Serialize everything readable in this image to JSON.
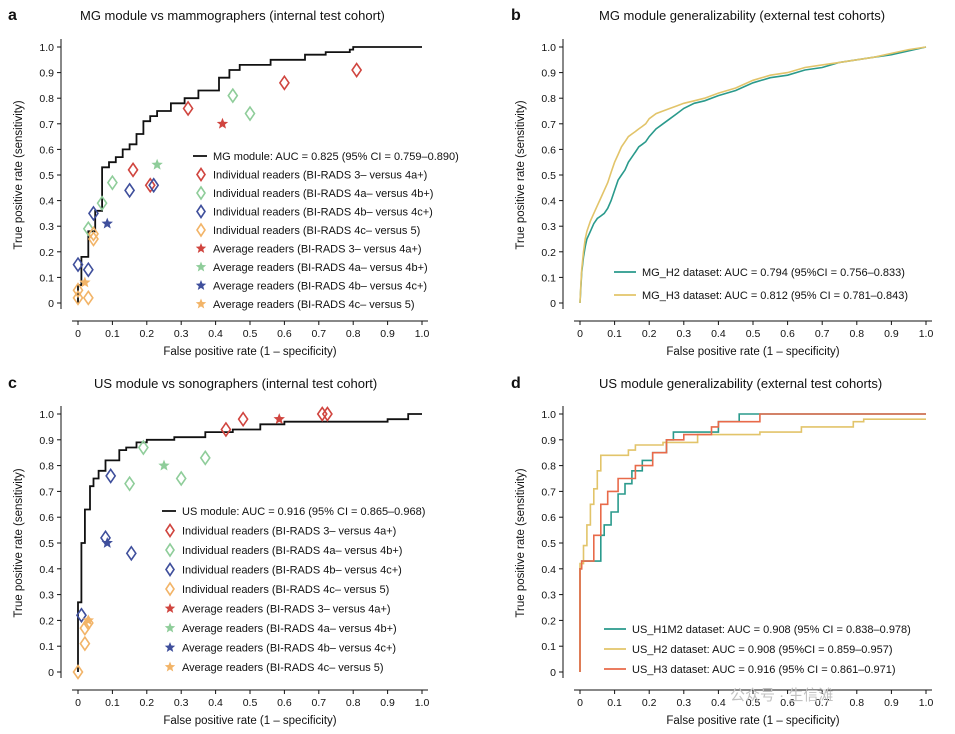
{
  "watermark": {
    "text": "公众号 · 生信滩"
  },
  "colors": {
    "mg": "#111111",
    "red": "#d0453f",
    "green": "#8fcd9a",
    "blue": "#3f4f9c",
    "orange": "#f2b468",
    "teal": "#2a9a8c",
    "gold": "#e2c46a",
    "salmon": "#e86a4a"
  },
  "chart_data": [
    {
      "panel": "a",
      "type": "line",
      "title": "MG module vs mammographers (internal test cohort)",
      "xlabel": "False positive rate (1 – specificity)",
      "ylabel": "True positive rate (sensitivity)",
      "xlim": [
        0,
        1
      ],
      "ylim": [
        0,
        1
      ],
      "xticks": [
        "0",
        "0.1",
        "0.2",
        "0.3",
        "0.4",
        "0.5",
        "0.6",
        "0.7",
        "0.8",
        "0.9",
        "1.0"
      ],
      "yticks": [
        "0",
        "0.1",
        "0.2",
        "0.3",
        "0.4",
        "0.5",
        "0.6",
        "0.7",
        "0.8",
        "0.9",
        "1.0"
      ],
      "legend_position": "center-right",
      "series": [
        {
          "name": "MG module: AUC = 0.825 (95% CI = 0.759–0.890)",
          "kind": "step",
          "color": "#111111",
          "x": [
            0,
            0,
            0.01,
            0.01,
            0.03,
            0.03,
            0.05,
            0.05,
            0.07,
            0.07,
            0.09,
            0.09,
            0.11,
            0.11,
            0.13,
            0.13,
            0.15,
            0.15,
            0.17,
            0.17,
            0.19,
            0.19,
            0.21,
            0.21,
            0.23,
            0.23,
            0.27,
            0.27,
            0.31,
            0.31,
            0.35,
            0.35,
            0.41,
            0.41,
            0.44,
            0.44,
            0.47,
            0.47,
            0.56,
            0.56,
            0.66,
            0.66,
            0.72,
            0.72,
            0.79,
            0.79,
            0.8,
            0.8,
            1.0
          ],
          "y": [
            0,
            0.07,
            0.07,
            0.18,
            0.18,
            0.28,
            0.28,
            0.36,
            0.36,
            0.53,
            0.53,
            0.55,
            0.55,
            0.57,
            0.57,
            0.6,
            0.6,
            0.62,
            0.62,
            0.66,
            0.66,
            0.71,
            0.71,
            0.73,
            0.73,
            0.75,
            0.75,
            0.78,
            0.78,
            0.8,
            0.8,
            0.83,
            0.83,
            0.88,
            0.88,
            0.91,
            0.91,
            0.93,
            0.93,
            0.95,
            0.95,
            0.97,
            0.97,
            0.98,
            0.98,
            0.99,
            0.99,
            1.0,
            1.0
          ]
        },
        {
          "name": "Individual readers (BI-RADS 3– versus 4a+)",
          "kind": "diamond",
          "color": "#d0453f",
          "points": [
            [
              0.16,
              0.52
            ],
            [
              0.21,
              0.46
            ],
            [
              0.32,
              0.76
            ],
            [
              0.6,
              0.86
            ],
            [
              0.81,
              0.91
            ]
          ]
        },
        {
          "name": "Individual readers (BI-RADS 4a– versus 4b+)",
          "kind": "diamond",
          "color": "#8fcd9a",
          "points": [
            [
              0.03,
              0.29
            ],
            [
              0.07,
              0.39
            ],
            [
              0.1,
              0.47
            ],
            [
              0.45,
              0.81
            ],
            [
              0.5,
              0.74
            ]
          ]
        },
        {
          "name": "Individual readers (BI-RADS 4b– versus 4c+)",
          "kind": "diamond",
          "color": "#3f4f9c",
          "points": [
            [
              0.0,
              0.15
            ],
            [
              0.03,
              0.13
            ],
            [
              0.045,
              0.35
            ],
            [
              0.15,
              0.44
            ],
            [
              0.22,
              0.46
            ]
          ]
        },
        {
          "name": "Individual readers (BI-RADS 4c– versus 5)",
          "kind": "diamond",
          "color": "#f2b468",
          "points": [
            [
              0.0,
              0.02
            ],
            [
              0.0,
              0.05
            ],
            [
              0.03,
              0.02
            ],
            [
              0.045,
              0.25
            ],
            [
              0.045,
              0.27
            ]
          ]
        },
        {
          "name": "Average readers (BI-RADS 3– versus 4a+)",
          "kind": "star",
          "color": "#d0453f",
          "points": [
            [
              0.42,
              0.7
            ]
          ]
        },
        {
          "name": "Average readers (BI-RADS 4a– versus 4b+)",
          "kind": "star",
          "color": "#8fcd9a",
          "points": [
            [
              0.23,
              0.54
            ]
          ]
        },
        {
          "name": "Average readers (BI-RADS 4b– versus 4c+)",
          "kind": "star",
          "color": "#3f4f9c",
          "points": [
            [
              0.085,
              0.31
            ]
          ]
        },
        {
          "name": "Average readers (BI-RADS 4c– versus 5)",
          "kind": "star",
          "color": "#f2b468",
          "points": [
            [
              0.02,
              0.08
            ]
          ]
        }
      ]
    },
    {
      "panel": "b",
      "type": "line",
      "title": "MG module generalizability (external test cohorts)",
      "xlabel": "False positive rate (1 – specificity)",
      "ylabel": "True positive rate (sensitivity)",
      "xlim": [
        0,
        1
      ],
      "ylim": [
        0,
        1
      ],
      "xticks": [
        "0",
        "0.1",
        "0.2",
        "0.3",
        "0.4",
        "0.5",
        "0.6",
        "0.7",
        "0.8",
        "0.9",
        "1.0"
      ],
      "yticks": [
        "0",
        "0.1",
        "0.2",
        "0.3",
        "0.4",
        "0.5",
        "0.6",
        "0.7",
        "0.8",
        "0.9",
        "1.0"
      ],
      "legend_position": "bottom-right",
      "series": [
        {
          "name": "MG_H2 dataset: AUC = 0.794 (95%CI = 0.756–0.833)",
          "kind": "line",
          "color": "#2a9a8c",
          "x": [
            0,
            0.002,
            0.005,
            0.01,
            0.015,
            0.02,
            0.03,
            0.04,
            0.05,
            0.06,
            0.07,
            0.08,
            0.09,
            0.1,
            0.11,
            0.12,
            0.13,
            0.14,
            0.15,
            0.16,
            0.17,
            0.18,
            0.19,
            0.2,
            0.22,
            0.24,
            0.26,
            0.28,
            0.3,
            0.33,
            0.36,
            0.4,
            0.45,
            0.5,
            0.55,
            0.6,
            0.65,
            0.7,
            0.75,
            0.8,
            0.85,
            0.9,
            0.95,
            1.0
          ],
          "y": [
            0,
            0.05,
            0.12,
            0.18,
            0.22,
            0.25,
            0.28,
            0.31,
            0.33,
            0.34,
            0.35,
            0.37,
            0.4,
            0.44,
            0.48,
            0.5,
            0.52,
            0.55,
            0.57,
            0.59,
            0.61,
            0.62,
            0.63,
            0.65,
            0.68,
            0.7,
            0.72,
            0.74,
            0.76,
            0.78,
            0.79,
            0.81,
            0.83,
            0.86,
            0.88,
            0.89,
            0.91,
            0.92,
            0.94,
            0.95,
            0.96,
            0.97,
            0.985,
            1.0
          ]
        },
        {
          "name": "MG_H3 dataset: AUC = 0.812 (95% CI = 0.781–0.843)",
          "kind": "line",
          "color": "#e2c46a",
          "x": [
            0,
            0.002,
            0.005,
            0.01,
            0.015,
            0.02,
            0.03,
            0.04,
            0.05,
            0.06,
            0.07,
            0.08,
            0.09,
            0.1,
            0.11,
            0.12,
            0.13,
            0.14,
            0.15,
            0.16,
            0.17,
            0.18,
            0.19,
            0.2,
            0.22,
            0.24,
            0.26,
            0.28,
            0.3,
            0.33,
            0.36,
            0.4,
            0.45,
            0.5,
            0.55,
            0.6,
            0.65,
            0.7,
            0.75,
            0.8,
            0.85,
            0.9,
            0.95,
            1.0
          ],
          "y": [
            0,
            0.06,
            0.13,
            0.2,
            0.25,
            0.28,
            0.32,
            0.35,
            0.38,
            0.41,
            0.44,
            0.47,
            0.51,
            0.55,
            0.58,
            0.61,
            0.63,
            0.65,
            0.66,
            0.67,
            0.68,
            0.69,
            0.7,
            0.72,
            0.74,
            0.75,
            0.76,
            0.77,
            0.78,
            0.79,
            0.8,
            0.82,
            0.84,
            0.87,
            0.89,
            0.9,
            0.92,
            0.93,
            0.94,
            0.95,
            0.96,
            0.975,
            0.99,
            1.0
          ]
        }
      ]
    },
    {
      "panel": "c",
      "type": "line",
      "title": "US module vs sonographers (internal test cohort)",
      "xlabel": "False positive rate (1 – specificity)",
      "ylabel": "True positive rate (sensitivity)",
      "xlim": [
        0,
        1
      ],
      "ylim": [
        0,
        1
      ],
      "xticks": [
        "0",
        "0.1",
        "0.2",
        "0.3",
        "0.4",
        "0.5",
        "0.6",
        "0.7",
        "0.8",
        "0.9",
        "1.0"
      ],
      "yticks": [
        "0",
        "0.1",
        "0.2",
        "0.3",
        "0.4",
        "0.5",
        "0.6",
        "0.7",
        "0.8",
        "0.9",
        "1.0"
      ],
      "legend_position": "center-right",
      "series": [
        {
          "name": "US module: AUC = 0.916 (95% CI = 0.865–0.968)",
          "kind": "step",
          "color": "#111111",
          "x": [
            0,
            0,
            0.01,
            0.01,
            0.02,
            0.02,
            0.035,
            0.035,
            0.045,
            0.045,
            0.06,
            0.06,
            0.08,
            0.08,
            0.12,
            0.12,
            0.14,
            0.14,
            0.17,
            0.17,
            0.2,
            0.2,
            0.28,
            0.28,
            0.37,
            0.37,
            0.45,
            0.45,
            0.53,
            0.53,
            0.6,
            0.6,
            0.9,
            0.9,
            0.96,
            0.96,
            1.0
          ],
          "y": [
            0,
            0.27,
            0.27,
            0.5,
            0.5,
            0.63,
            0.63,
            0.72,
            0.72,
            0.75,
            0.75,
            0.78,
            0.78,
            0.82,
            0.82,
            0.86,
            0.86,
            0.87,
            0.87,
            0.89,
            0.89,
            0.9,
            0.9,
            0.91,
            0.91,
            0.93,
            0.93,
            0.94,
            0.94,
            0.96,
            0.96,
            0.97,
            0.97,
            0.98,
            0.98,
            1.0,
            1.0
          ]
        },
        {
          "name": "Individual readers (BI-RADS 3– versus 4a+)",
          "kind": "diamond",
          "color": "#d0453f",
          "points": [
            [
              0.43,
              0.94
            ],
            [
              0.48,
              0.98
            ],
            [
              0.71,
              1.0
            ],
            [
              0.725,
              1.0
            ]
          ]
        },
        {
          "name": "Individual readers (BI-RADS 4a– versus 4b+)",
          "kind": "diamond",
          "color": "#8fcd9a",
          "points": [
            [
              0.15,
              0.73
            ],
            [
              0.19,
              0.87
            ],
            [
              0.3,
              0.75
            ],
            [
              0.37,
              0.83
            ]
          ]
        },
        {
          "name": "Individual readers (BI-RADS 4b– versus 4c+)",
          "kind": "diamond",
          "color": "#3f4f9c",
          "points": [
            [
              0.01,
              0.22
            ],
            [
              0.08,
              0.52
            ],
            [
              0.095,
              0.76
            ],
            [
              0.155,
              0.46
            ]
          ]
        },
        {
          "name": "Individual readers (BI-RADS 4c– versus 5)",
          "kind": "diamond",
          "color": "#f2b468",
          "points": [
            [
              0.0,
              0.0
            ],
            [
              0.02,
              0.11
            ],
            [
              0.02,
              0.17
            ],
            [
              0.03,
              0.19
            ]
          ]
        },
        {
          "name": "Average readers (BI-RADS 3– versus 4a+)",
          "kind": "star",
          "color": "#d0453f",
          "points": [
            [
              0.585,
              0.98
            ]
          ]
        },
        {
          "name": "Average readers (BI-RADS 4a– versus 4b+)",
          "kind": "star",
          "color": "#8fcd9a",
          "points": [
            [
              0.25,
              0.8
            ]
          ]
        },
        {
          "name": "Average readers (BI-RADS 4b– versus 4c+)",
          "kind": "star",
          "color": "#3f4f9c",
          "points": [
            [
              0.085,
              0.5
            ]
          ]
        },
        {
          "name": "Average readers (BI-RADS 4c– versus 5)",
          "kind": "star",
          "color": "#f2b468",
          "points": [
            [
              0.03,
              0.2
            ]
          ]
        }
      ]
    },
    {
      "panel": "d",
      "type": "line",
      "title": "US module generalizability (external test cohorts)",
      "xlabel": "False positive rate (1 – specificity)",
      "ylabel": "True positive rate (sensitivity)",
      "xlim": [
        0,
        1
      ],
      "ylim": [
        0,
        1
      ],
      "xticks": [
        "0",
        "0.1",
        "0.2",
        "0.3",
        "0.4",
        "0.5",
        "0.6",
        "0.7",
        "0.8",
        "0.9",
        "1.0"
      ],
      "yticks": [
        "0",
        "0.1",
        "0.2",
        "0.3",
        "0.4",
        "0.5",
        "0.6",
        "0.7",
        "0.8",
        "0.9",
        "1.0"
      ],
      "legend_position": "bottom-right",
      "series": [
        {
          "name": "US_H1M2 dataset: AUC = 0.908 (95% CI = 0.838–0.978)",
          "kind": "step",
          "color": "#2a9a8c",
          "x": [
            0,
            0,
            0.005,
            0.005,
            0.06,
            0.06,
            0.07,
            0.07,
            0.09,
            0.09,
            0.11,
            0.11,
            0.13,
            0.13,
            0.15,
            0.15,
            0.18,
            0.18,
            0.21,
            0.21,
            0.25,
            0.25,
            0.27,
            0.27,
            0.4,
            0.4,
            0.46,
            0.46,
            1.0
          ],
          "y": [
            0,
            0.4,
            0.4,
            0.43,
            0.43,
            0.53,
            0.53,
            0.57,
            0.57,
            0.62,
            0.62,
            0.69,
            0.69,
            0.73,
            0.73,
            0.78,
            0.78,
            0.82,
            0.82,
            0.85,
            0.85,
            0.9,
            0.9,
            0.93,
            0.93,
            0.97,
            0.97,
            1.0,
            1.0
          ]
        },
        {
          "name": "US_H2 dataset: AUC = 0.908 (95%CI = 0.859–0.957)",
          "kind": "step",
          "color": "#e2c46a",
          "x": [
            0,
            0,
            0.01,
            0.01,
            0.02,
            0.02,
            0.03,
            0.03,
            0.04,
            0.04,
            0.05,
            0.05,
            0.06,
            0.06,
            0.14,
            0.14,
            0.16,
            0.16,
            0.24,
            0.24,
            0.34,
            0.34,
            0.52,
            0.52,
            0.64,
            0.64,
            0.79,
            0.79,
            0.82,
            0.82,
            1.0
          ],
          "y": [
            0,
            0.42,
            0.42,
            0.49,
            0.49,
            0.57,
            0.57,
            0.65,
            0.65,
            0.71,
            0.71,
            0.78,
            0.78,
            0.84,
            0.84,
            0.86,
            0.86,
            0.88,
            0.88,
            0.89,
            0.89,
            0.92,
            0.92,
            0.93,
            0.93,
            0.95,
            0.95,
            0.97,
            0.97,
            0.98,
            0.98
          ]
        },
        {
          "name": "US_H3 dataset: AUC = 0.916 (95% CI = 0.861–0.971)",
          "kind": "step",
          "color": "#e86a4a",
          "x": [
            0,
            0,
            0.005,
            0.005,
            0.04,
            0.04,
            0.06,
            0.06,
            0.08,
            0.08,
            0.11,
            0.11,
            0.16,
            0.16,
            0.21,
            0.21,
            0.25,
            0.25,
            0.3,
            0.3,
            0.38,
            0.38,
            0.4,
            0.4,
            0.52,
            0.52,
            1.0
          ],
          "y": [
            0,
            0.4,
            0.4,
            0.43,
            0.43,
            0.53,
            0.53,
            0.65,
            0.65,
            0.7,
            0.7,
            0.75,
            0.75,
            0.8,
            0.8,
            0.85,
            0.85,
            0.9,
            0.9,
            0.92,
            0.92,
            0.95,
            0.95,
            0.97,
            0.97,
            1.0,
            1.0
          ]
        }
      ]
    }
  ]
}
